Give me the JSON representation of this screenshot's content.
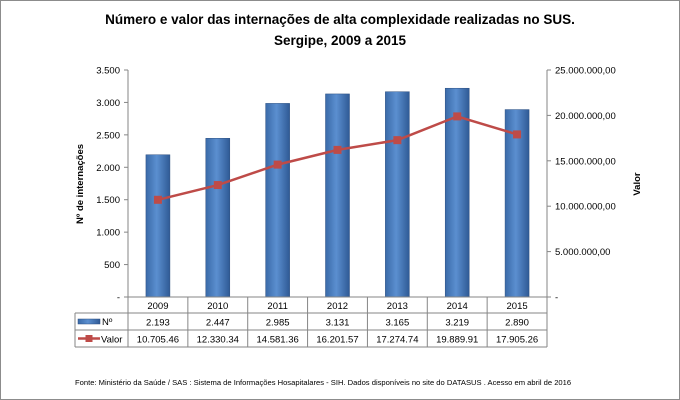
{
  "chart_data": {
    "type": "bar+line",
    "title": "Número e valor das internações de alta complexidade realizadas no SUS.",
    "subtitle": "Sergipe, 2009 a 2015",
    "categories": [
      "2009",
      "2010",
      "2011",
      "2012",
      "2013",
      "2014",
      "2015"
    ],
    "y_left": {
      "label": "Nº de internações",
      "range": [
        0,
        3500
      ],
      "ticks": [
        "-",
        "500",
        "1.000",
        "1.500",
        "2.000",
        "2.500",
        "3.000",
        "3.500"
      ]
    },
    "y_right": {
      "label": "Valor",
      "range": [
        0,
        25000000
      ],
      "ticks": [
        "-",
        "5.000.000,00",
        "10.000.000,00",
        "15.000.000,00",
        "20.000.000,00",
        "25.000.000,00"
      ]
    },
    "series": [
      {
        "name": "Nº",
        "type": "bar",
        "axis": "left",
        "color": "#4f81bd",
        "values": [
          2193,
          2447,
          2985,
          3131,
          3165,
          3219,
          2890
        ],
        "labels": [
          "2.193",
          "2.447",
          "2.985",
          "3.131",
          "3.165",
          "3.219",
          "2.890"
        ]
      },
      {
        "name": "Valor",
        "type": "line",
        "axis": "right",
        "color": "#be4b48",
        "values": [
          10705460,
          12330340,
          14581360,
          16201570,
          17274740,
          19889910,
          17905260
        ],
        "labels": [
          "10.705.46",
          "12.330.34",
          "14.581.36",
          "16.201.57",
          "17.274.74",
          "19.889.91",
          "17.905.26"
        ]
      }
    ],
    "data_table": true,
    "grid": false,
    "source": "Fonte:  Ministério da Saúde  / SAS : Sistema de Informações Hosapitalares - SIH. Dados disponíveis no site do DATASUS . Acesso em abril de 2016"
  }
}
